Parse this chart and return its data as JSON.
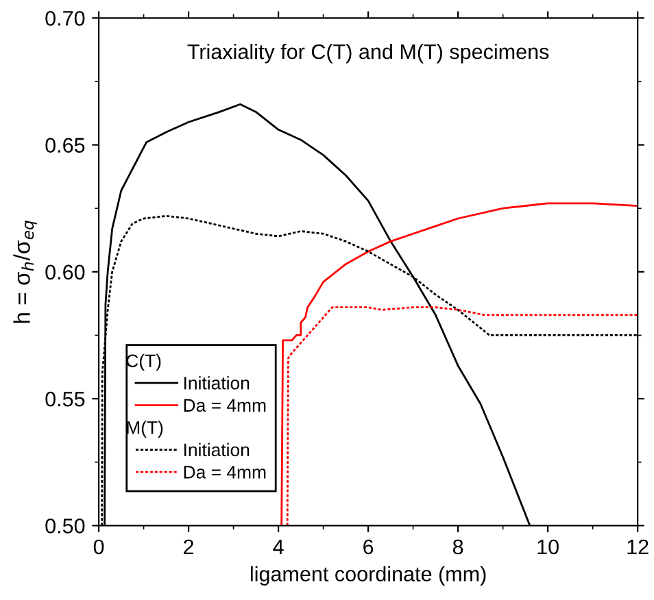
{
  "chart_data": {
    "type": "line",
    "title": "Triaxiality for C(T) and M(T) specimens",
    "xlabel": "ligament coordinate (mm)",
    "ylabel": "h = σ$_{h}$/σ$_{eq}$",
    "annotations": [
      "C(T)",
      "M(T)"
    ],
    "xlim": [
      0,
      12
    ],
    "xticks": [
      0,
      2,
      4,
      6,
      8,
      10,
      12
    ],
    "ylim": [
      0.5,
      0.7
    ],
    "yticks": [
      {
        "value": 0.5,
        "label": "0.50"
      },
      {
        "value": 0.55,
        "label": "0.55"
      },
      {
        "value": 0.6,
        "label": "0.60"
      },
      {
        "value": 0.65,
        "label": "0.65"
      },
      {
        "value": 0.7,
        "label": "0.70"
      }
    ],
    "grid": false,
    "legend": "bottom left",
    "marker": "none",
    "series": [
      {
        "name": "Initiation",
        "color": "#000000",
        "line_style": "solid",
        "x": [
          0.13,
          0.15,
          0.2,
          0.3,
          0.5,
          0.75,
          1.06,
          1.5,
          2,
          2.69,
          3.15,
          3.5,
          4,
          4.5,
          5,
          5.5,
          6,
          6.5,
          7,
          7.5,
          8,
          8.5,
          9,
          9.6
        ],
        "values": [
          0.5,
          0.587,
          0.6,
          0.617,
          0.632,
          0.6405,
          0.651,
          0.655,
          0.659,
          0.663,
          0.666,
          0.663,
          0.656,
          0.652,
          0.646,
          0.638,
          0.628,
          0.612,
          0.598,
          0.583,
          0.563,
          0.548,
          0.527,
          0.5
        ]
      },
      {
        "name": "Da = 4mm",
        "color": "#ff0000",
        "line_style": "solid",
        "x": [
          4.07,
          4.1,
          4.3,
          4.4,
          4.5,
          4.5,
          4.6,
          4.65,
          4.8,
          5,
          5.5,
          6,
          6.5,
          7,
          7.5,
          8,
          9,
          10,
          11,
          12
        ],
        "values": [
          0.5,
          0.573,
          0.573,
          0.575,
          0.575,
          0.58,
          0.582,
          0.586,
          0.59,
          0.596,
          0.603,
          0.608,
          0.612,
          0.615,
          0.618,
          0.621,
          0.625,
          0.627,
          0.627,
          0.626
        ]
      },
      {
        "name": "Initiation",
        "color": "#000000",
        "line_style": "dotted",
        "x": [
          0.07,
          0.08,
          0.2,
          0.3,
          0.5,
          0.75,
          1,
          1.5,
          2,
          2.5,
          3,
          3.5,
          4,
          4.5,
          5,
          5.5,
          6,
          6.5,
          7,
          7.5,
          8,
          8.7,
          12
        ],
        "values": [
          0.5,
          0.56,
          0.585,
          0.6,
          0.612,
          0.619,
          0.621,
          0.622,
          0.621,
          0.619,
          0.617,
          0.615,
          0.614,
          0.616,
          0.615,
          0.612,
          0.608,
          0.603,
          0.598,
          0.591,
          0.585,
          0.575,
          0.575
        ]
      },
      {
        "name": "Da = 4mm",
        "color": "#ff0000",
        "line_style": "dotted",
        "x": [
          4.2,
          4.22,
          4.3,
          4.5,
          4.7,
          5,
          5.2,
          6,
          6.3,
          7,
          7.5,
          8,
          8.6,
          12
        ],
        "values": [
          0.5,
          0.566,
          0.568,
          0.572,
          0.576,
          0.582,
          0.586,
          0.586,
          0.585,
          0.586,
          0.586,
          0.585,
          0.583,
          0.583
        ]
      }
    ]
  }
}
